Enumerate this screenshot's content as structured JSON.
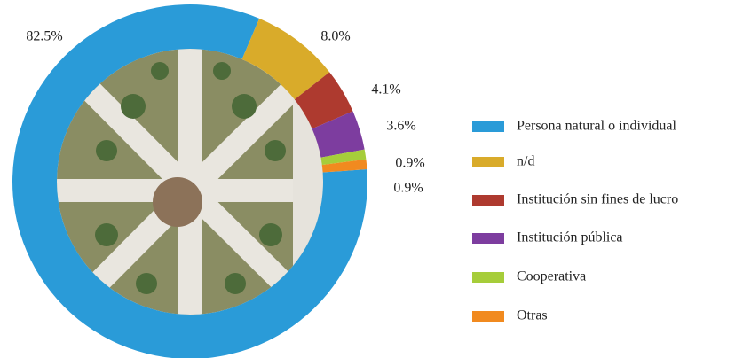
{
  "chart_data": {
    "type": "donut",
    "categories": [
      "Persona natural o individual",
      "n/d",
      "Institución sin fines de lucro",
      "Institución pública",
      "Cooperativa",
      "Otras"
    ],
    "values": [
      82.5,
      8.0,
      4.1,
      3.6,
      0.9,
      0.9
    ],
    "value_labels": [
      "82.5%",
      "8.0%",
      "4.1%",
      "3.6%",
      "0.9%",
      "0.9%"
    ],
    "colors": [
      "#2a9bd8",
      "#d9ab2a",
      "#ae3a2f",
      "#7d3d9f",
      "#a6cd3a",
      "#f18a1f"
    ]
  }
}
